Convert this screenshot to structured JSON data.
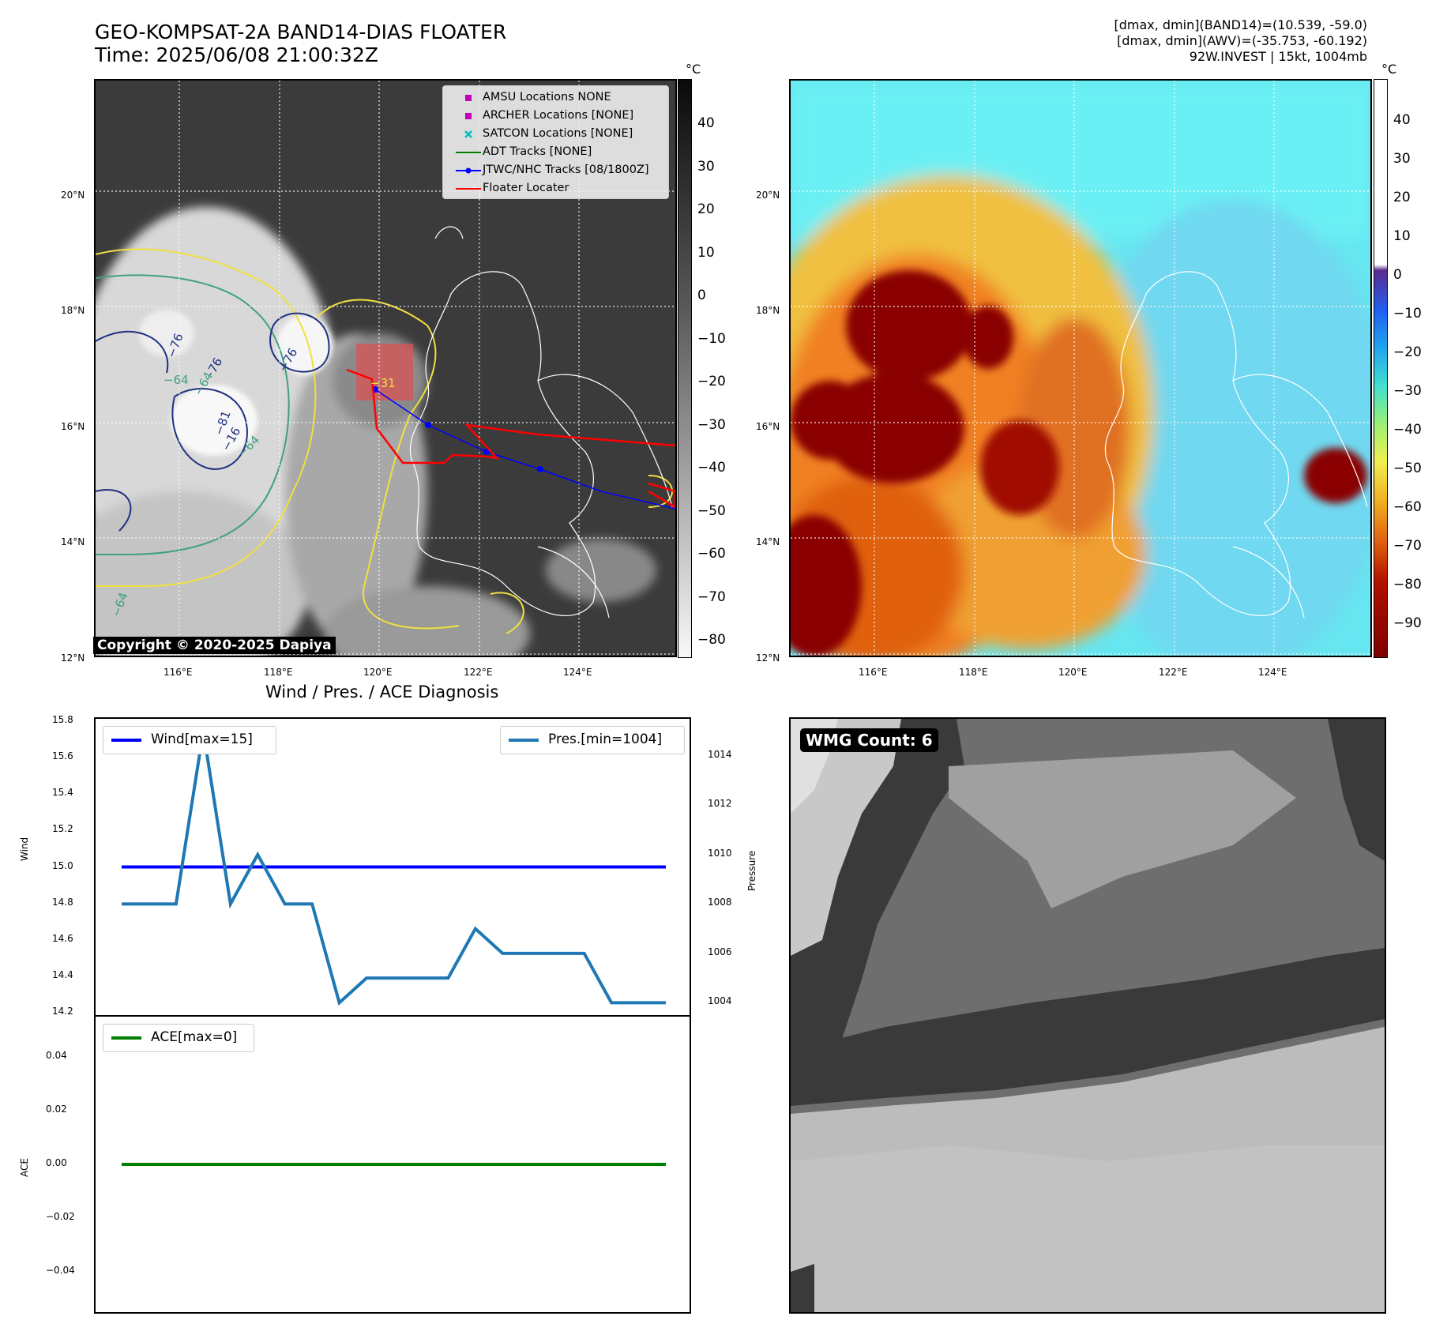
{
  "header": {
    "title_line1": "GEO-KOMPSAT-2A BAND14-DIAS FLOATER",
    "title_line2": "Time: 2025/06/08 21:00:32Z",
    "info_line1": "[dmax, dmin](BAND14)=(10.539, -59.0)",
    "info_line2": "[dmax, dmin](AWV)=(-35.753, -60.192)",
    "info_line3": "92W.INVEST | 15kt, 1004mb"
  },
  "maps": {
    "lat_labels": [
      "20°N",
      "18°N",
      "16°N",
      "14°N",
      "12°N"
    ],
    "lon_labels": [
      "116°E",
      "118°E",
      "120°E",
      "122°E",
      "124°E"
    ],
    "unit": "°C",
    "ir_colorbar_ticks": [
      "40",
      "30",
      "20",
      "10",
      "0",
      "−10",
      "−20",
      "−30",
      "−40",
      "−50",
      "−60",
      "−70",
      "−80"
    ],
    "awv_colorbar_ticks": [
      "40",
      "30",
      "20",
      "10",
      "0",
      "−10",
      "−20",
      "−30",
      "−40",
      "−50",
      "−60",
      "−70",
      "−80",
      "−90"
    ],
    "contour_labels": [
      "−76",
      "−76",
      "−76",
      "−64",
      "−64",
      "−64",
      "−81",
      "−16",
      "−31",
      "−64"
    ],
    "copyright": "Copyright © 2020-2025 Dapiya",
    "legend": [
      {
        "label": "AMSU Locations NONE",
        "symbol": "square",
        "color": "#bf00bf"
      },
      {
        "label": "ARCHER Locations [NONE]",
        "symbol": "square",
        "color": "#bf00bf"
      },
      {
        "label": "SATCON Locations [NONE]",
        "symbol": "x",
        "color": "#00bfbf"
      },
      {
        "label": "ADT Tracks [NONE]",
        "symbol": "line",
        "color": "#008000"
      },
      {
        "label": "JTWC/NHC Tracks [08/1800Z]",
        "symbol": "line-dot",
        "color": "#0000ff"
      },
      {
        "label": "Floater Locater",
        "symbol": "line",
        "color": "#ff0000"
      }
    ]
  },
  "diagnosis": {
    "title": "Wind / Pres. / ACE Diagnosis",
    "wind_axis_label": "Wind",
    "pressure_axis_label": "Pressure",
    "ace_axis_label": "ACE",
    "wind_legend": "Wind[max=15]",
    "pres_legend": "Pres.[min=1004]",
    "ace_legend": "ACE[max=0]",
    "wind_color": "#0000ff",
    "pres_color": "#1f77b4",
    "ace_color": "#008000"
  },
  "wmg": {
    "label": "WMG Count: 6"
  },
  "chart_data": [
    {
      "type": "line",
      "x": [
        0,
        1,
        2,
        3,
        4,
        5,
        6,
        7,
        8,
        9,
        10,
        11,
        12,
        13,
        14,
        15,
        16,
        17,
        18,
        19,
        20
      ],
      "series": [
        {
          "name": "Wind[max=15]",
          "axis": "left",
          "values": [
            15,
            15,
            15,
            15,
            15,
            15,
            15,
            15,
            15,
            15,
            15,
            15,
            15,
            15,
            15,
            15,
            15,
            15,
            15,
            15,
            15
          ]
        },
        {
          "name": "Pres.[min=1004]",
          "axis": "right",
          "values": [
            1008,
            1008,
            1008,
            1015,
            1008,
            1010,
            1008,
            1008,
            1004,
            1005,
            1005,
            1005,
            1005,
            1007,
            1006,
            1006,
            1006,
            1006,
            1004,
            1004,
            1004
          ]
        }
      ],
      "ylabel": "Wind",
      "ylabel_right": "Pressure",
      "ylim": [
        14.2,
        15.8
      ],
      "ylim_right": [
        1003.5,
        1015.5
      ],
      "yticks": [
        "14.2",
        "14.4",
        "14.6",
        "14.8",
        "15.0",
        "15.2",
        "15.4",
        "15.6",
        "15.8"
      ],
      "yticks_right": [
        "1004",
        "1006",
        "1008",
        "1010",
        "1012",
        "1014"
      ],
      "legend_position": "top"
    },
    {
      "type": "line",
      "x": [
        0,
        1,
        2,
        3,
        4,
        5,
        6,
        7,
        8,
        9,
        10,
        11,
        12,
        13,
        14,
        15,
        16,
        17,
        18,
        19,
        20
      ],
      "series": [
        {
          "name": "ACE[max=0]",
          "values": [
            0,
            0,
            0,
            0,
            0,
            0,
            0,
            0,
            0,
            0,
            0,
            0,
            0,
            0,
            0,
            0,
            0,
            0,
            0,
            0,
            0
          ]
        }
      ],
      "ylabel": "ACE",
      "ylim": [
        -0.055,
        0.055
      ],
      "yticks": [
        "0.04",
        "0.02",
        "0.00",
        "−0.02",
        "−0.04"
      ],
      "legend_position": "top-left"
    }
  ]
}
